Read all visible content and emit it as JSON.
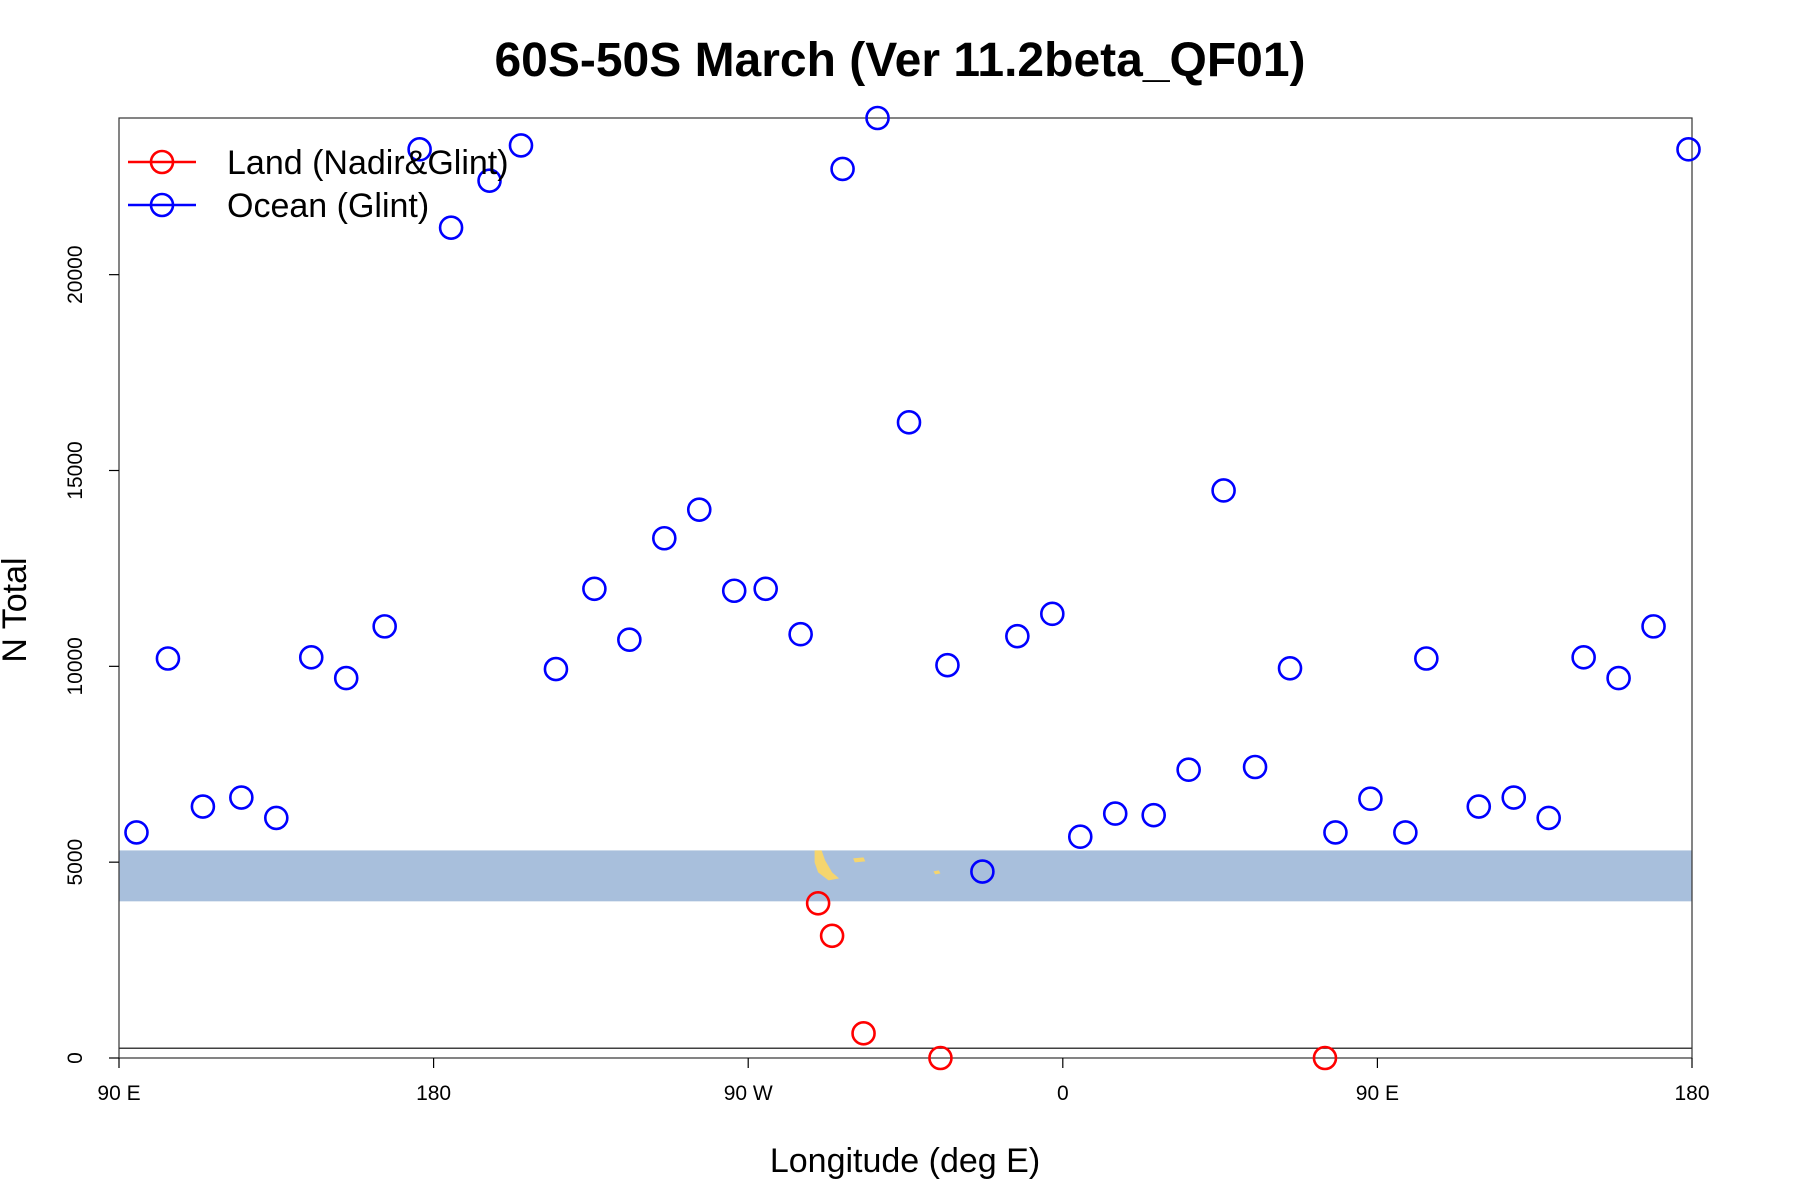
{
  "chart_data": {
    "type": "scatter",
    "title": "60S-50S March (Ver 11.2beta_QF01)",
    "xlabel": "Longitude (deg E)",
    "ylabel": "N Total",
    "xlim": [
      90,
      540
    ],
    "ylim": [
      0,
      24000
    ],
    "x_ticks": [
      {
        "value": 90,
        "label": "90 E"
      },
      {
        "value": 180,
        "label": "180"
      },
      {
        "value": 270,
        "label": "90 W"
      },
      {
        "value": 360,
        "label": "0"
      },
      {
        "value": 450,
        "label": "90 E"
      },
      {
        "value": 540,
        "label": "180"
      }
    ],
    "y_ticks": [
      {
        "value": 0,
        "label": "0"
      },
      {
        "value": 5000,
        "label": "5000"
      },
      {
        "value": 10000,
        "label": "10000"
      },
      {
        "value": 15000,
        "label": "15000"
      },
      {
        "value": 20000,
        "label": "20000"
      }
    ],
    "map_band": {
      "y_range": [
        4000,
        5300
      ],
      "color": "#a8bfdc",
      "land_color": "#f5d56e"
    },
    "reference_line_y": 250,
    "legend_position": "top-left",
    "series": [
      {
        "name": "Land (Nadir&Glint)",
        "color": "#ff0000",
        "points": [
          [
            290,
            3950
          ],
          [
            294,
            3120
          ],
          [
            303,
            630
          ],
          [
            325,
            0
          ],
          [
            435,
            0
          ]
        ]
      },
      {
        "name": "Ocean (Glint)",
        "color": "#0000ff",
        "points": [
          [
            95,
            5760
          ],
          [
            104,
            10200
          ],
          [
            114,
            6420
          ],
          [
            125,
            6650
          ],
          [
            135,
            6130
          ],
          [
            145,
            10230
          ],
          [
            155,
            9700
          ],
          [
            166,
            11020
          ],
          [
            176,
            23200
          ],
          [
            185,
            21200
          ],
          [
            196,
            22400
          ],
          [
            205,
            23300
          ],
          [
            215,
            9930
          ],
          [
            226,
            11980
          ],
          [
            236,
            10680
          ],
          [
            246,
            13270
          ],
          [
            256,
            14000
          ],
          [
            266,
            11930
          ],
          [
            275,
            11980
          ],
          [
            285,
            10820
          ],
          [
            297,
            22700
          ],
          [
            307,
            24000
          ],
          [
            316,
            16230
          ],
          [
            327,
            10030
          ],
          [
            337,
            4760
          ],
          [
            347,
            10770
          ],
          [
            357,
            11340
          ],
          [
            365,
            5650
          ],
          [
            375,
            6240
          ],
          [
            386,
            6200
          ],
          [
            396,
            7360
          ],
          [
            406,
            14490
          ],
          [
            415,
            7430
          ],
          [
            425,
            9950
          ],
          [
            438,
            5760
          ],
          [
            448,
            6620
          ],
          [
            458,
            5760
          ],
          [
            464,
            10200
          ],
          [
            479,
            6420
          ],
          [
            489,
            6650
          ],
          [
            499,
            6130
          ],
          [
            509,
            10230
          ],
          [
            519,
            9700
          ],
          [
            529,
            11020
          ],
          [
            539,
            23200
          ]
        ]
      }
    ]
  }
}
